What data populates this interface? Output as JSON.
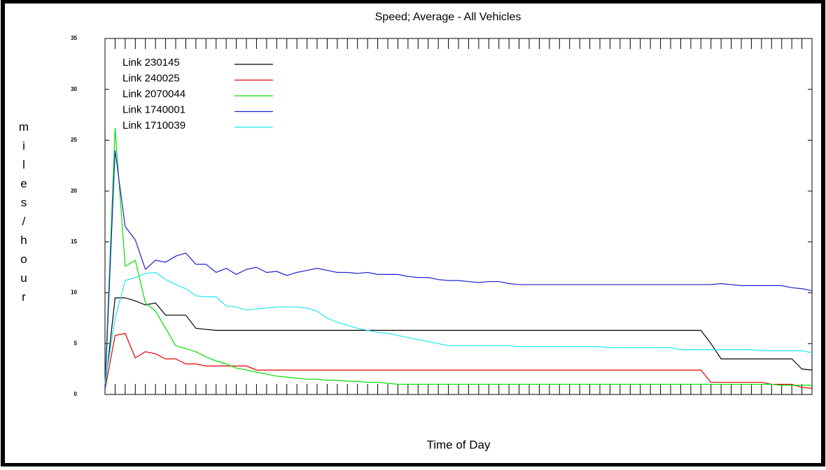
{
  "chart_data": {
    "type": "line",
    "title": "Speed; Average - All Vehicles",
    "x_label": "Time of Day",
    "y_label": "miles/hour",
    "x": [
      0,
      1,
      2,
      3,
      4,
      5,
      6,
      7,
      8,
      9,
      10,
      11,
      12,
      13,
      14,
      15,
      16,
      17,
      18,
      19,
      20,
      21,
      22,
      23,
      24,
      25,
      26,
      27,
      28,
      29,
      30,
      31,
      32,
      33,
      34,
      35,
      36,
      37,
      38,
      39,
      40,
      41,
      42,
      43,
      44,
      45,
      46,
      47,
      48,
      49,
      50,
      51,
      52,
      53,
      54,
      55,
      56,
      57,
      58,
      59,
      60,
      61,
      62,
      63,
      64,
      65,
      66,
      67,
      68,
      69,
      70
    ],
    "xlim": [
      0,
      70
    ],
    "xticks": [
      0,
      1,
      2,
      3,
      4,
      5,
      6,
      7,
      8,
      9,
      10,
      11,
      12,
      13,
      14,
      15,
      16,
      17,
      18,
      19,
      20,
      21,
      22,
      23,
      24,
      25,
      26,
      27,
      28,
      29,
      30,
      31,
      32,
      33,
      34,
      35,
      36,
      37,
      38,
      39,
      40,
      41,
      42,
      43,
      44,
      45,
      46,
      47,
      48,
      49,
      50,
      51,
      52,
      53,
      54,
      55,
      56,
      57,
      58,
      59,
      60,
      61,
      62,
      63,
      64,
      65,
      66,
      67,
      68,
      69,
      70
    ],
    "ylim": [
      0,
      35
    ],
    "yticks": [
      0,
      5,
      10,
      15,
      20,
      25,
      30,
      35
    ],
    "legend": "upper left",
    "series": [
      {
        "name": "Link 230145",
        "color": "#000000",
        "values": [
          0.5,
          9.5,
          9.5,
          9.2,
          8.8,
          9.0,
          7.8,
          7.8,
          7.8,
          6.5,
          6.4,
          6.3,
          6.3,
          6.3,
          6.3,
          6.3,
          6.3,
          6.3,
          6.3,
          6.3,
          6.3,
          6.3,
          6.3,
          6.3,
          6.3,
          6.3,
          6.3,
          6.3,
          6.3,
          6.3,
          6.3,
          6.3,
          6.3,
          6.3,
          6.3,
          6.3,
          6.3,
          6.3,
          6.3,
          6.3,
          6.3,
          6.3,
          6.3,
          6.3,
          6.3,
          6.3,
          6.3,
          6.3,
          6.3,
          6.3,
          6.3,
          6.3,
          6.3,
          6.3,
          6.3,
          6.3,
          6.3,
          6.3,
          6.3,
          6.3,
          5.0,
          3.5,
          3.5,
          3.5,
          3.5,
          3.5,
          3.5,
          3.5,
          3.5,
          2.5,
          2.4
        ]
      },
      {
        "name": "Link 240025",
        "color": "#e00000",
        "values": [
          0.5,
          5.8,
          6.0,
          3.6,
          4.2,
          4.0,
          3.5,
          3.5,
          3.0,
          3.0,
          2.8,
          2.8,
          2.8,
          2.8,
          2.8,
          2.4,
          2.4,
          2.4,
          2.4,
          2.4,
          2.4,
          2.4,
          2.4,
          2.4,
          2.4,
          2.4,
          2.4,
          2.4,
          2.4,
          2.4,
          2.4,
          2.4,
          2.4,
          2.4,
          2.4,
          2.4,
          2.4,
          2.4,
          2.4,
          2.4,
          2.4,
          2.4,
          2.4,
          2.4,
          2.4,
          2.4,
          2.4,
          2.4,
          2.4,
          2.4,
          2.4,
          2.4,
          2.4,
          2.4,
          2.4,
          2.4,
          2.4,
          2.4,
          2.4,
          2.4,
          1.2,
          1.2,
          1.2,
          1.2,
          1.2,
          1.2,
          1.0,
          1.0,
          1.0,
          0.7,
          0.6
        ]
      },
      {
        "name": "Link 2070044",
        "color": "#00e000",
        "values": [
          1,
          26.2,
          12.6,
          13.2,
          9.0,
          8.2,
          6.5,
          4.8,
          4.5,
          4.2,
          3.7,
          3.3,
          3.0,
          2.6,
          2.4,
          2.2,
          2.0,
          1.8,
          1.7,
          1.6,
          1.5,
          1.5,
          1.4,
          1.4,
          1.3,
          1.3,
          1.2,
          1.2,
          1.1,
          1.0,
          1.0,
          1.0,
          1.0,
          1.0,
          1.0,
          1.0,
          1.0,
          1.0,
          1.0,
          1.0,
          1.0,
          1.0,
          1.0,
          1.0,
          1.0,
          1.0,
          1.0,
          1.0,
          1.0,
          1.0,
          1.0,
          1.0,
          1.0,
          1.0,
          1.0,
          1.0,
          1.0,
          1.0,
          1.0,
          1.0,
          1.0,
          1.0,
          1.0,
          1.0,
          1.0,
          1.0,
          1.0,
          0.9,
          0.9,
          0.9,
          0.9
        ]
      },
      {
        "name": "Link 1740001",
        "color": "#2020d0",
        "values": [
          0.5,
          24,
          16.5,
          15.2,
          12.3,
          13.2,
          13.0,
          13.6,
          13.9,
          12.8,
          12.8,
          12.0,
          12.4,
          11.8,
          12.3,
          12.5,
          12.0,
          12.1,
          11.7,
          12.0,
          12.2,
          12.4,
          12.2,
          12.0,
          12.0,
          11.9,
          12.0,
          11.8,
          11.8,
          11.8,
          11.6,
          11.5,
          11.5,
          11.3,
          11.2,
          11.2,
          11.1,
          11.0,
          11.1,
          11.1,
          10.9,
          10.8,
          10.8,
          10.8,
          10.8,
          10.8,
          10.8,
          10.8,
          10.8,
          10.8,
          10.8,
          10.8,
          10.8,
          10.8,
          10.8,
          10.8,
          10.8,
          10.8,
          10.8,
          10.8,
          10.8,
          10.9,
          10.8,
          10.7,
          10.7,
          10.7,
          10.7,
          10.7,
          10.5,
          10.4,
          10.2
        ]
      },
      {
        "name": "Link 1710039",
        "color": "#20e8f0",
        "values": [
          1,
          7.5,
          11.2,
          11.5,
          11.9,
          12.0,
          11.3,
          10.8,
          10.4,
          9.7,
          9.6,
          9.6,
          8.7,
          8.6,
          8.3,
          8.4,
          8.5,
          8.6,
          8.6,
          8.6,
          8.5,
          8.2,
          7.5,
          7.1,
          6.8,
          6.5,
          6.3,
          6.1,
          6.0,
          5.8,
          5.6,
          5.4,
          5.2,
          5.0,
          4.8,
          4.8,
          4.8,
          4.8,
          4.8,
          4.8,
          4.8,
          4.7,
          4.7,
          4.7,
          4.7,
          4.7,
          4.7,
          4.7,
          4.7,
          4.7,
          4.6,
          4.6,
          4.6,
          4.6,
          4.6,
          4.6,
          4.6,
          4.4,
          4.4,
          4.4,
          4.4,
          4.4,
          4.4,
          4.4,
          4.4,
          4.3,
          4.3,
          4.3,
          4.3,
          4.3,
          4.1
        ]
      }
    ]
  }
}
